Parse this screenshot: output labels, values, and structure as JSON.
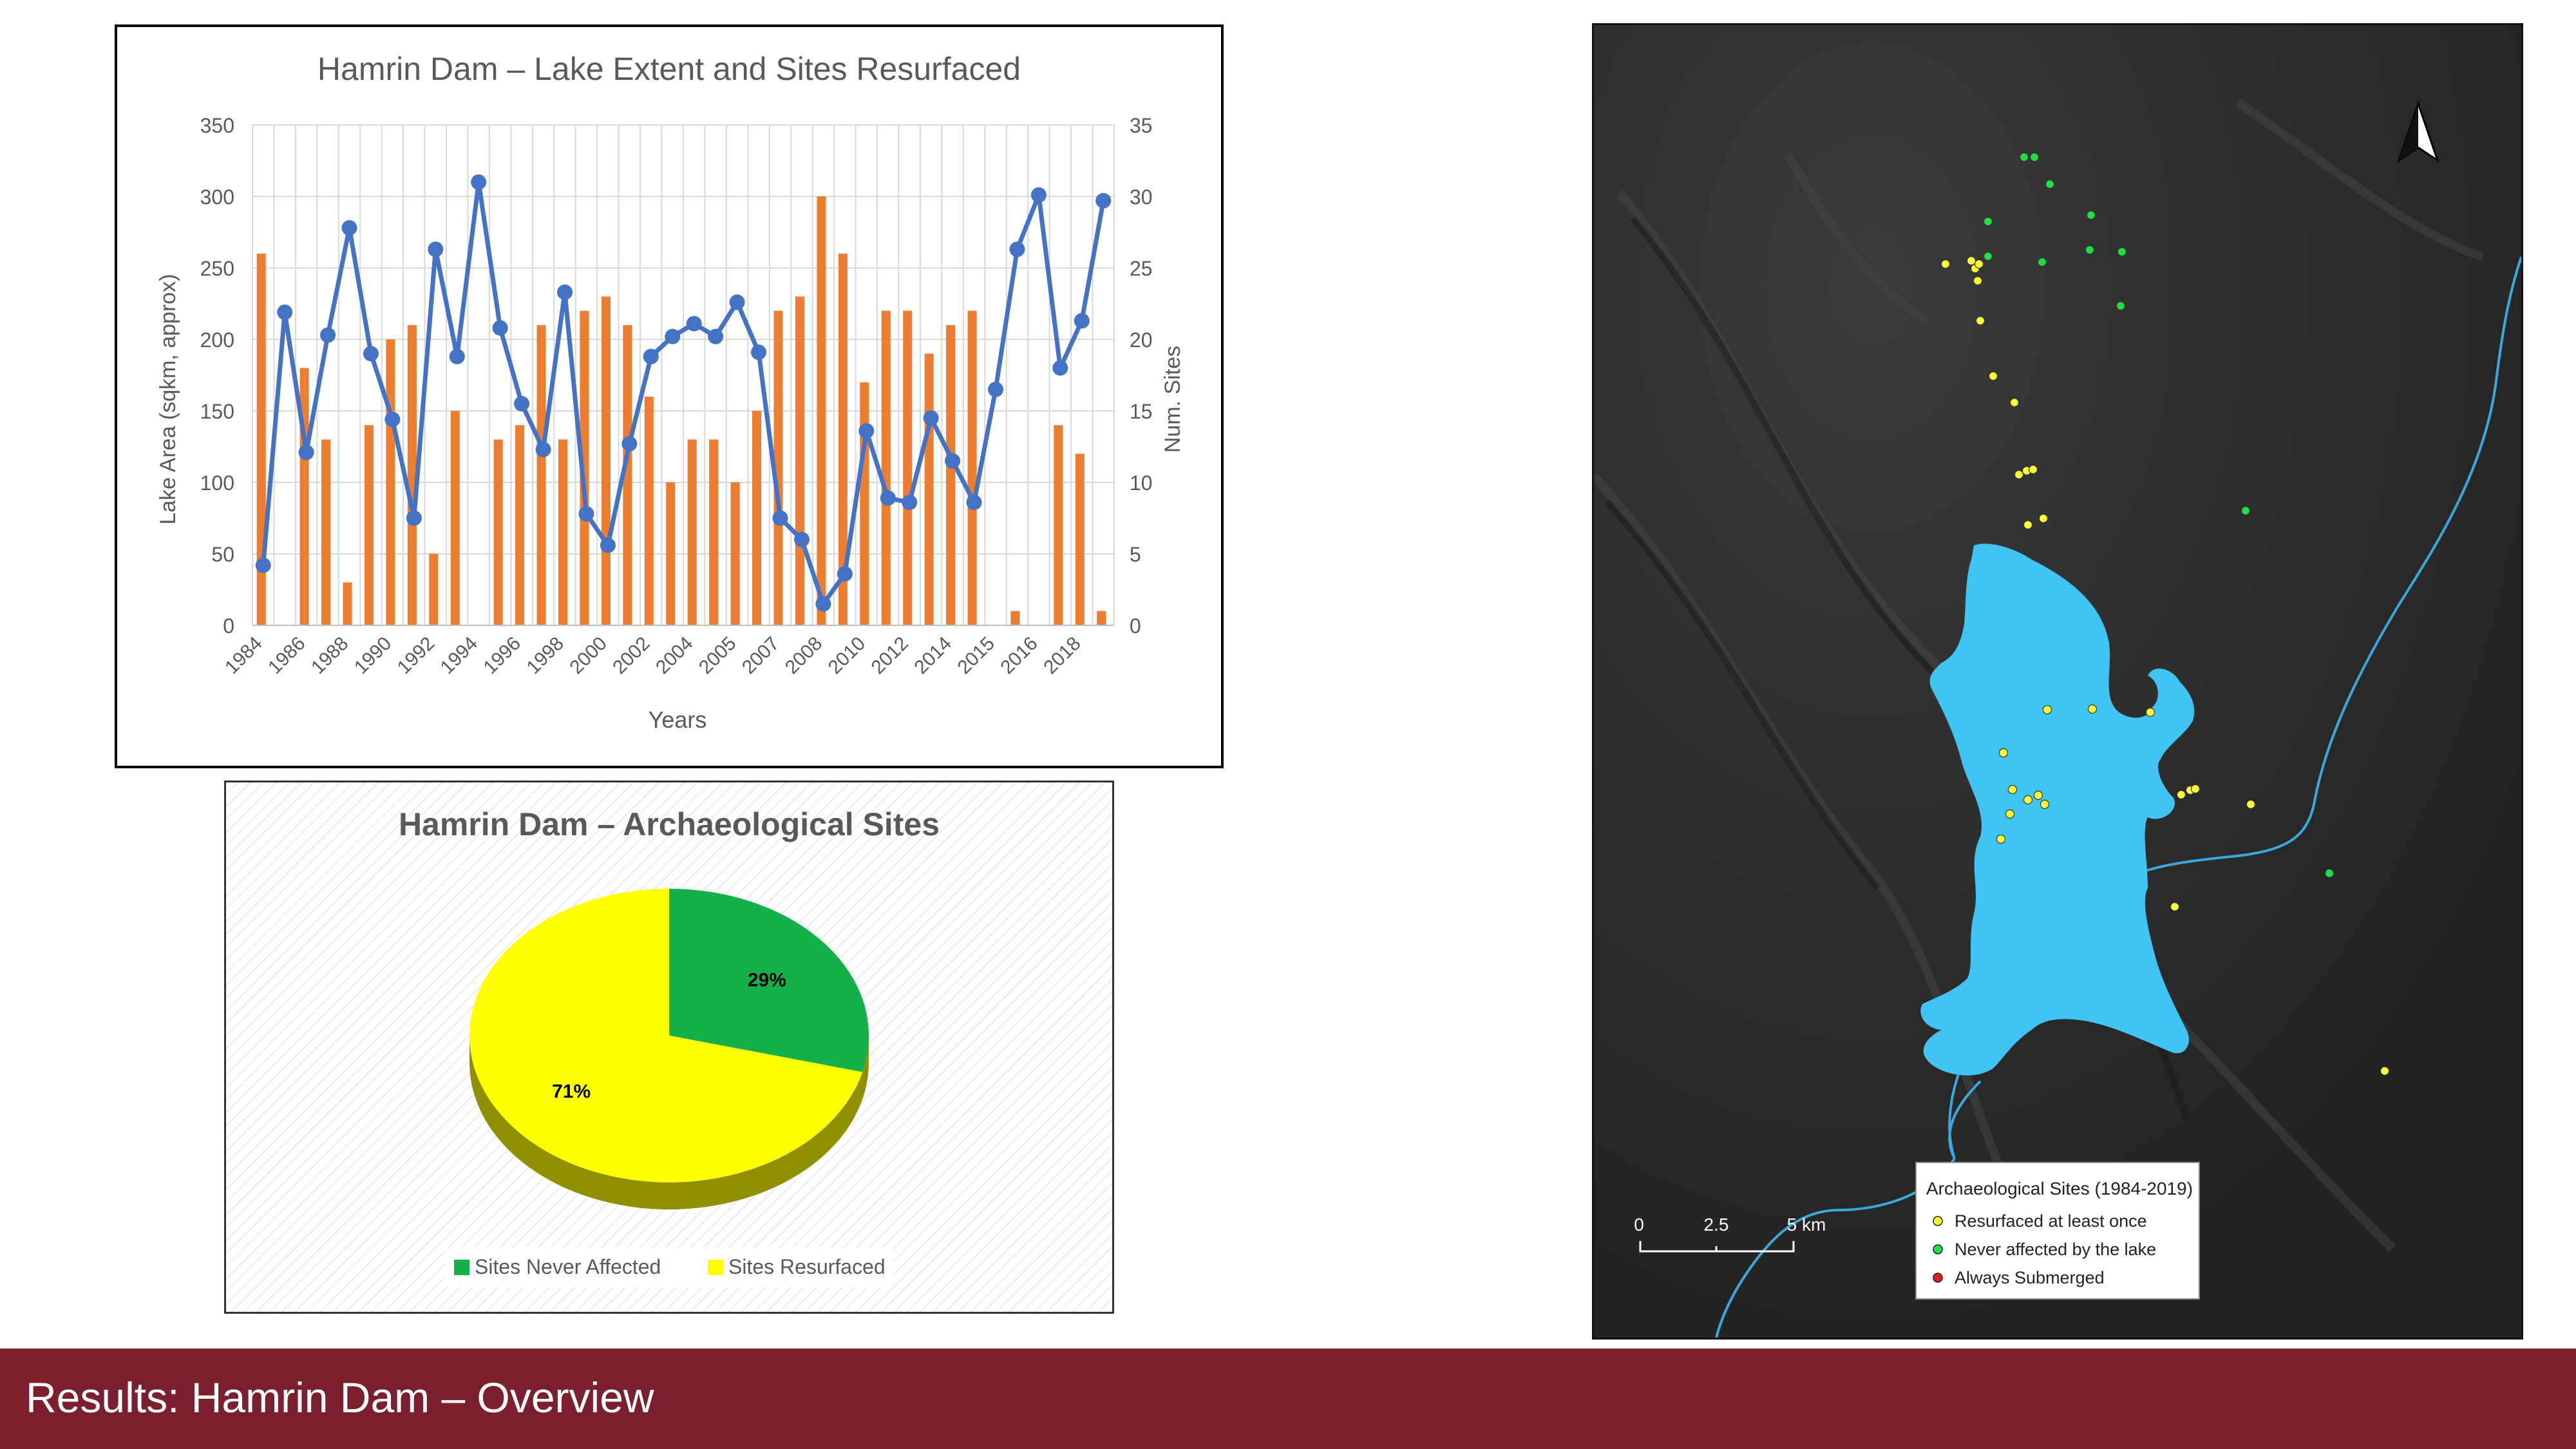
{
  "footer": {
    "title": "Results: Hamrin Dam – Overview"
  },
  "chart_data": [
    {
      "type": "bar+line",
      "title": "Hamrin Dam – Lake Extent and Sites Resurfaced",
      "xlabel": "Years",
      "ylabel": "Lake Area (sqkm, approx)",
      "y2label": "Num. Sites",
      "ylim": [
        0,
        350
      ],
      "y2lim": [
        0,
        35
      ],
      "yticks": [
        "0",
        "50",
        "100",
        "150",
        "200",
        "250",
        "300",
        "350"
      ],
      "y2ticks": [
        "0",
        "5",
        "10",
        "15",
        "20",
        "25",
        "30",
        "35"
      ],
      "grid": true,
      "x_tick_labels": [
        "1984",
        "1986",
        "1988",
        "1990",
        "1992",
        "1994",
        "1996",
        "1998",
        "2000",
        "2002",
        "2004",
        "2005",
        "2007",
        "2008",
        "2010",
        "2012",
        "2014",
        "2015",
        "2016",
        "2018"
      ],
      "bar_color": "#ed7d31",
      "line_color": "#4472c4",
      "bar_series": {
        "axis": "right",
        "values": [
          26,
          0,
          18,
          13,
          3,
          14,
          20,
          21,
          5,
          15,
          0,
          13,
          14,
          21,
          13,
          22,
          23,
          21,
          16,
          10,
          13,
          13,
          10,
          15,
          22,
          23,
          30,
          26,
          17,
          22,
          22,
          19,
          21,
          22,
          0,
          1,
          0,
          14,
          12,
          1
        ]
      },
      "line_series": {
        "axis": "left",
        "values": [
          42,
          219,
          121,
          203,
          278,
          190,
          144,
          75,
          263,
          188,
          310,
          208,
          155,
          123,
          233,
          78,
          56,
          127,
          188,
          202,
          211,
          202,
          226,
          191,
          75,
          60,
          15,
          36,
          136,
          89,
          86,
          145,
          115,
          86,
          165,
          263,
          301,
          180,
          213,
          297
        ]
      }
    },
    {
      "type": "pie",
      "title": "Hamrin Dam – Archaeological Sites",
      "slices": [
        {
          "label": "Sites Never Affected",
          "value": 29,
          "display": "29%",
          "color": "#14b14b"
        },
        {
          "label": "Sites Resurfaced",
          "value": 71,
          "display": "71%",
          "color": "#ffff00"
        }
      ],
      "legend_position": "bottom"
    }
  ],
  "map": {
    "legend": {
      "title": "Archaeological Sites (1984-2019)",
      "items": [
        {
          "label": "Resurfaced at least once",
          "color": "#ffff33"
        },
        {
          "label": "Never affected by the lake",
          "color": "#22dd44"
        },
        {
          "label": "Always Submerged",
          "color": "#e21b24"
        }
      ]
    },
    "scale_labels": [
      "0",
      "2.5",
      "5 km"
    ],
    "lake_color": "#40c4f4",
    "river_color": "#3aa8dc"
  }
}
